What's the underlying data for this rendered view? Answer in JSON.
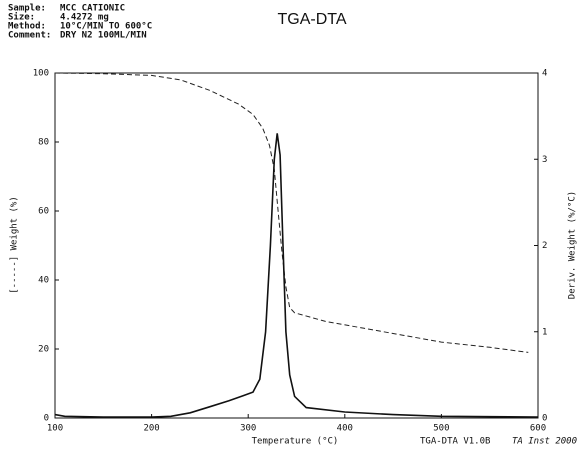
{
  "chart_data": {
    "type": "line",
    "title": "TGA-DTA",
    "info": [
      {
        "label": "Sample:",
        "value": "MCC CATIONIC"
      },
      {
        "label": "Size:",
        "value": "4.4272 mg"
      },
      {
        "label": "Method:",
        "value": "10°C/MIN TO 600°C"
      },
      {
        "label": "Comment:",
        "value": "DRY N2 100ML/MIN"
      }
    ],
    "x_label": "Temperature (°C)",
    "y_label": "[-----] Weight (%)",
    "y2_label": "Deriv. Weight (%/°C)",
    "footer": [
      "TGA-DTA V1.0B",
      "TA Inst 2000"
    ],
    "xlim": [
      100,
      600
    ],
    "xticks": [
      100,
      200,
      300,
      400,
      500,
      600
    ],
    "ylim": [
      0,
      100
    ],
    "yticks": [
      0,
      20,
      40,
      60,
      80,
      100
    ],
    "y2lim": [
      0,
      4
    ],
    "y2ticks": [
      0,
      1,
      2,
      3,
      4
    ],
    "series": [
      {
        "name": "Weight",
        "color": "#222",
        "dash": true,
        "axis": "y",
        "x": [
          100,
          150,
          200,
          230,
          260,
          290,
          305,
          315,
          322,
          327,
          331,
          335,
          339,
          343,
          348,
          380,
          420,
          460,
          500,
          550,
          590
        ],
        "values": [
          100,
          99.8,
          99.3,
          98,
          95,
          91,
          88,
          84,
          79,
          72,
          60,
          48,
          38,
          32,
          30.5,
          28,
          26,
          24,
          22,
          20.5,
          19
        ]
      },
      {
        "name": "Deriv. Weight",
        "color": "#111",
        "dash": false,
        "axis": "y2",
        "x": [
          100,
          110,
          150,
          200,
          220,
          240,
          260,
          280,
          295,
          305,
          312,
          318,
          323,
          327,
          330,
          333,
          336,
          339,
          343,
          348,
          360,
          400,
          450,
          500,
          600
        ],
        "values": [
          0.04,
          0.02,
          0.01,
          0.01,
          0.02,
          0.06,
          0.13,
          0.2,
          0.26,
          0.3,
          0.45,
          1.0,
          2.0,
          3.0,
          3.3,
          3.05,
          2.0,
          1.0,
          0.5,
          0.25,
          0.12,
          0.07,
          0.04,
          0.02,
          0.01
        ]
      }
    ]
  }
}
